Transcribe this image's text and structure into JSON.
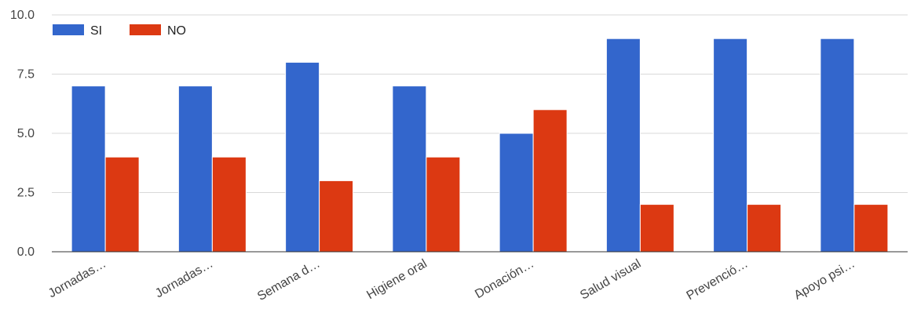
{
  "chart_data": {
    "type": "bar",
    "categories": [
      "Jornadas…",
      "Jornadas…",
      "Semana d…",
      "Higiene oral",
      "Donación…",
      "Salud visual",
      "Prevenció…",
      "Apoyo psi…"
    ],
    "series": [
      {
        "name": "SI",
        "color": "#3366cc",
        "values": [
          7,
          7,
          8,
          7,
          5,
          9,
          9,
          9
        ]
      },
      {
        "name": "NO",
        "color": "#dc3912",
        "values": [
          4,
          4,
          3,
          4,
          6,
          2,
          2,
          2
        ]
      }
    ],
    "ylim": [
      0,
      10
    ],
    "yticks": [
      "0.0",
      "2.5",
      "5.0",
      "7.5",
      "10.0"
    ],
    "ytick_values": [
      0,
      2.5,
      5,
      7.5,
      10
    ],
    "grid": true,
    "legend": "top-left",
    "title": "",
    "xlabel": "",
    "ylabel": ""
  }
}
